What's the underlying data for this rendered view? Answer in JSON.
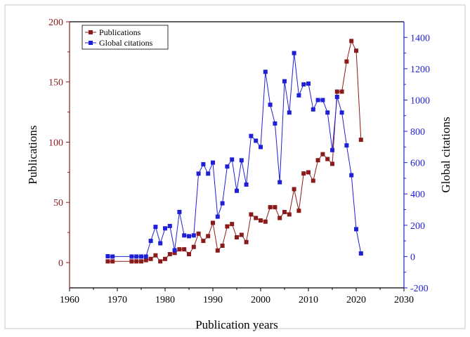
{
  "chart_data": {
    "type": "line",
    "title": "",
    "xlabel": "Publication years",
    "ylabel": "Publications",
    "y2label": "Global citations",
    "xlim": [
      1960,
      2030
    ],
    "ylim": [
      -21,
      200
    ],
    "y2lim": [
      -200,
      1500
    ],
    "x_ticks": [
      "1960",
      "1970",
      "1980",
      "1990",
      "2000",
      "2010",
      "2020",
      "2030"
    ],
    "y_ticks": [
      "0",
      "50",
      "100",
      "150",
      "200"
    ],
    "y2_ticks": [
      "-200",
      "0",
      "200",
      "400",
      "600",
      "800",
      "1000",
      "1200",
      "1400"
    ],
    "legend_position": "top-left",
    "grid": false,
    "colors": {
      "publications": "#8b1a1a",
      "citations": "#1f1fd6",
      "left_axis": "#8b1a1a",
      "right_axis": "#1f1fd6"
    },
    "series": [
      {
        "name": "Publications",
        "axis": "left",
        "x": [
          1968,
          1969,
          1973,
          1974,
          1975,
          1976,
          1977,
          1978,
          1979,
          1980,
          1981,
          1982,
          1983,
          1984,
          1985,
          1986,
          1987,
          1988,
          1989,
          1990,
          1991,
          1992,
          1993,
          1994,
          1995,
          1996,
          1997,
          1998,
          1999,
          2000,
          2001,
          2002,
          2003,
          2004,
          2005,
          2006,
          2007,
          2008,
          2009,
          2010,
          2011,
          2012,
          2013,
          2014,
          2015,
          2016,
          2017,
          2018,
          2019,
          2020,
          2021
        ],
        "values": [
          1,
          1,
          1,
          1,
          1,
          2,
          3,
          6,
          1,
          3,
          7,
          8,
          11,
          11,
          7,
          13,
          24,
          18,
          22,
          33,
          10,
          14,
          30,
          32,
          21,
          23,
          17,
          40,
          37,
          35,
          34,
          46,
          46,
          37,
          42,
          40,
          61,
          43,
          74,
          75,
          68,
          85,
          90,
          86,
          82,
          142,
          142,
          167,
          184,
          176,
          102
        ]
      },
      {
        "name": "Global citations",
        "axis": "right",
        "x": [
          1968,
          1969,
          1973,
          1974,
          1975,
          1976,
          1977,
          1978,
          1979,
          1980,
          1981,
          1982,
          1983,
          1984,
          1985,
          1986,
          1987,
          1988,
          1989,
          1990,
          1991,
          1992,
          1993,
          1994,
          1995,
          1996,
          1997,
          1998,
          1999,
          2000,
          2001,
          2002,
          2003,
          2004,
          2005,
          2006,
          2007,
          2008,
          2009,
          2010,
          2011,
          2012,
          2013,
          2014,
          2015,
          2016,
          2017,
          2018,
          2019,
          2020,
          2021
        ],
        "values": [
          2,
          0,
          0,
          0,
          0,
          0,
          100,
          190,
          85,
          180,
          195,
          40,
          285,
          135,
          130,
          135,
          530,
          590,
          530,
          600,
          255,
          340,
          575,
          620,
          420,
          615,
          460,
          770,
          740,
          700,
          1180,
          970,
          850,
          475,
          1120,
          920,
          1300,
          1030,
          1100,
          1105,
          940,
          1000,
          1000,
          920,
          680,
          1020,
          920,
          710,
          520,
          175,
          20
        ]
      }
    ]
  }
}
